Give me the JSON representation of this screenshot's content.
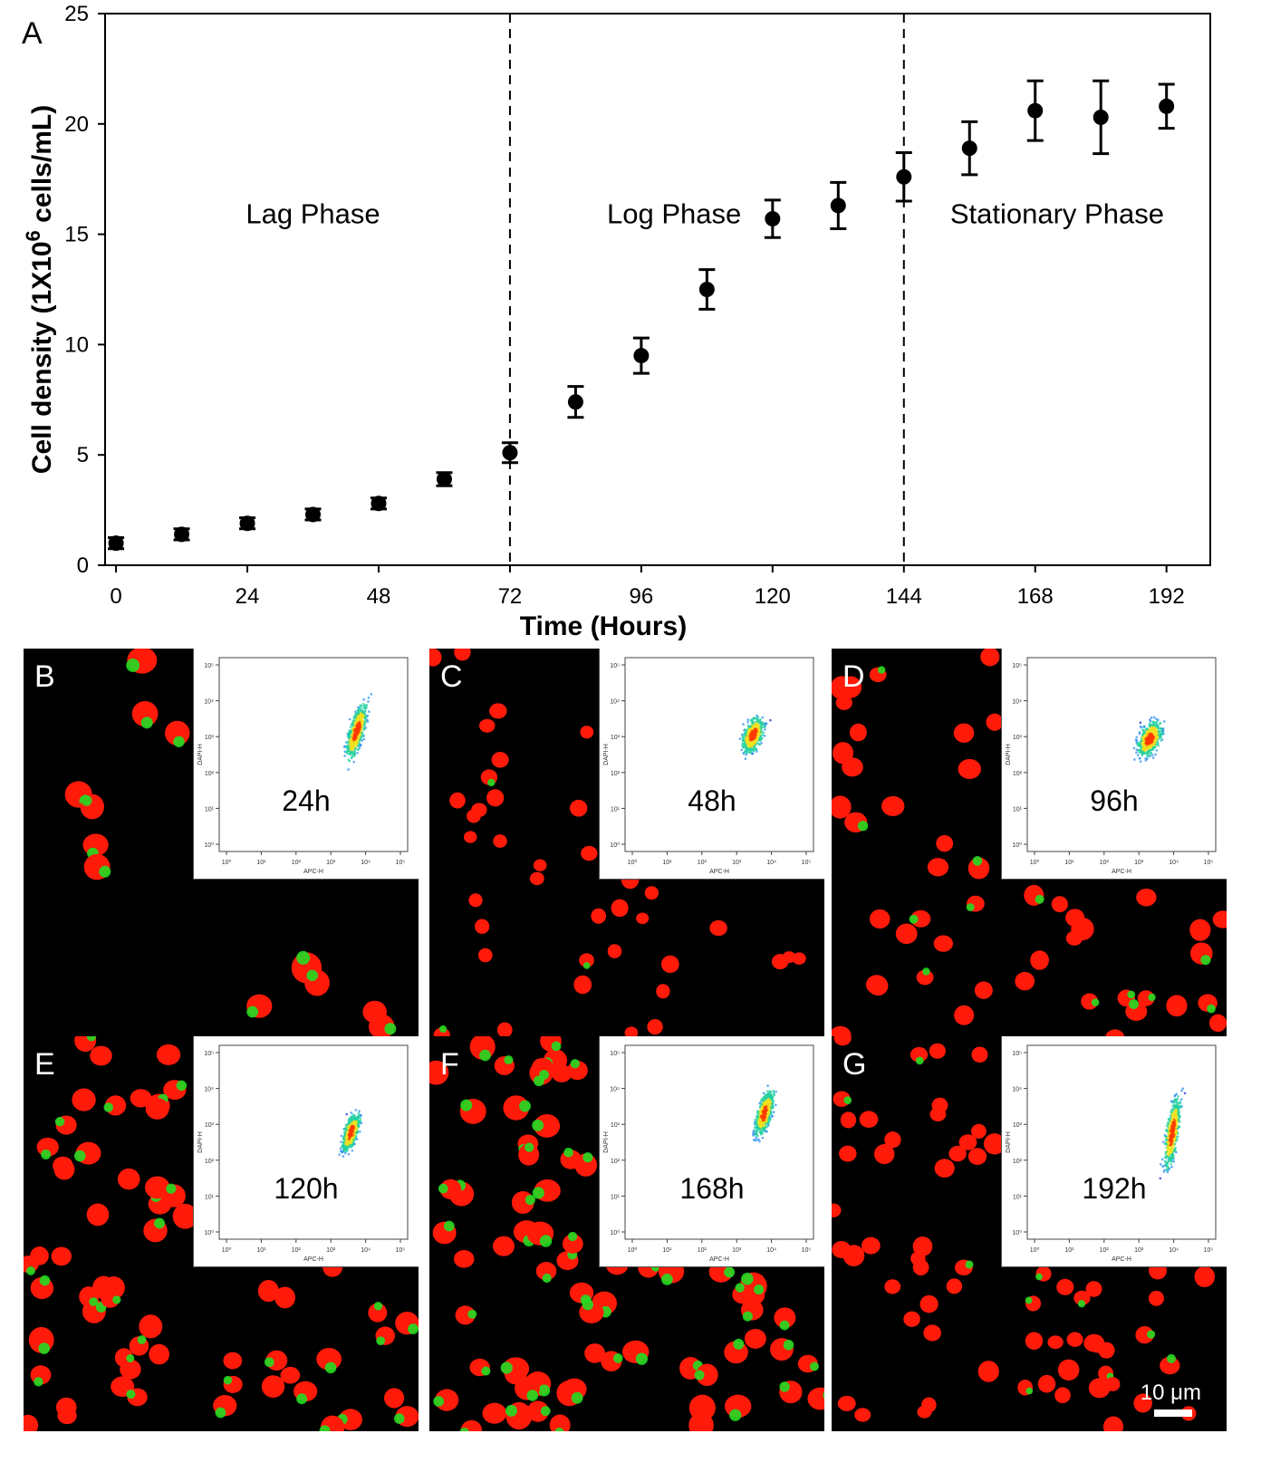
{
  "chart_data": {
    "type": "scatter",
    "panel_label": "A",
    "title": "",
    "xlabel": "Time (Hours)",
    "ylabel_main": "Cell density (1X10",
    "ylabel_sup": "6",
    "ylabel_tail": " cells/mL)",
    "xlim": [
      -2,
      200
    ],
    "ylim": [
      0,
      25
    ],
    "xticks": [
      0,
      24,
      48,
      72,
      96,
      120,
      144,
      168,
      192
    ],
    "yticks": [
      0,
      5,
      10,
      15,
      20,
      25
    ],
    "grid": false,
    "series": [
      {
        "name": "Cell density",
        "x": [
          0,
          12,
          24,
          36,
          48,
          60,
          72,
          84,
          96,
          108,
          120,
          132,
          144,
          156,
          168,
          180,
          192
        ],
        "y": [
          1.0,
          1.4,
          1.9,
          2.3,
          2.8,
          3.9,
          5.1,
          7.4,
          9.5,
          12.5,
          15.7,
          16.3,
          17.6,
          18.9,
          20.6,
          20.3,
          20.8
        ],
        "err": [
          0.25,
          0.25,
          0.25,
          0.25,
          0.25,
          0.3,
          0.45,
          0.7,
          0.8,
          0.9,
          0.85,
          1.05,
          1.1,
          1.2,
          1.35,
          1.65,
          1.0
        ]
      }
    ],
    "vlines": [
      72,
      144
    ],
    "annotations": [
      {
        "text": "Lag Phase",
        "x": 36,
        "y": 15.5
      },
      {
        "text": "Log Phase",
        "x": 102,
        "y": 15.5
      },
      {
        "text": "Stationary  Phase",
        "x": 172,
        "y": 15.5
      }
    ]
  },
  "panels": [
    {
      "label": "B",
      "time": "24h"
    },
    {
      "label": "C",
      "time": "48h"
    },
    {
      "label": "D",
      "time": "96h"
    },
    {
      "label": "E",
      "time": "120h"
    },
    {
      "label": "F",
      "time": "168h"
    },
    {
      "label": "G",
      "time": "192h"
    }
  ],
  "inset_axes": {
    "xlabel": "APC-H",
    "ylabel": "DAPI-H"
  },
  "scale_bar": "10 μm",
  "colors": {
    "cell": "#ff1a0a",
    "chloroplast": "#22dd22",
    "flow_low": "#1a2fd8",
    "flow_high": "#ff3a00"
  }
}
